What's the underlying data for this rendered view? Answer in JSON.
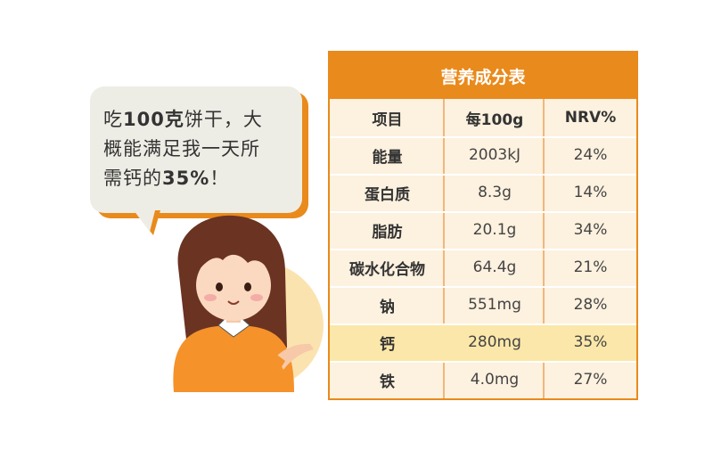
{
  "bubble": {
    "line1_pre": "吃",
    "line1_bold": "100克",
    "line1_post": "饼干，大",
    "line2": "概能满足我一天所",
    "line3_pre": "需钙的",
    "line3_bold": "35%",
    "line3_post": "！"
  },
  "colors": {
    "accent": "#e98a1c",
    "table_bg": "#fdf1df",
    "highlight": "#fbe7a9",
    "bubble_bg": "#eeede5"
  },
  "table": {
    "title": "营养成分表",
    "headers": [
      "项目",
      "每100g",
      "NRV%"
    ],
    "rows": [
      {
        "item": "能量",
        "per100g": "2003kJ",
        "nrv": "24%"
      },
      {
        "item": "蛋白质",
        "per100g": "8.3g",
        "nrv": "14%"
      },
      {
        "item": "脂肪",
        "per100g": "20.1g",
        "nrv": "34%"
      },
      {
        "item": "碳水化合物",
        "per100g": "64.4g",
        "nrv": "21%"
      },
      {
        "item": "钠",
        "per100g": "551mg",
        "nrv": "28%"
      },
      {
        "item": "钙",
        "per100g": "280mg",
        "nrv": "35%"
      },
      {
        "item": "铁",
        "per100g": "4.0mg",
        "nrv": "27%"
      }
    ]
  }
}
